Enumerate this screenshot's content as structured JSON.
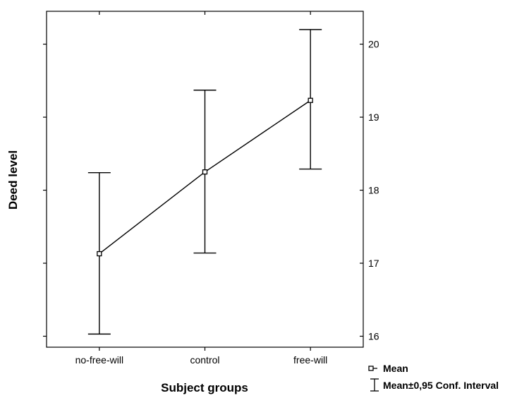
{
  "chart_data": {
    "type": "line",
    "title": "",
    "xlabel": "Subject groups",
    "ylabel": "Deed level",
    "categories": [
      "no-free-will",
      "control",
      "free-will"
    ],
    "series": [
      {
        "name": "Mean",
        "values": [
          17.13,
          18.25,
          19.23
        ],
        "ci_lower": [
          16.03,
          17.14,
          18.29
        ],
        "ci_upper": [
          18.24,
          19.37,
          20.2
        ]
      }
    ],
    "error_bar_label": "Mean±0,95 Conf. Interval",
    "ylim": [
      15.85,
      20.45
    ],
    "yticks": [
      16,
      17,
      18,
      19,
      20
    ],
    "grid": false,
    "legend_position": "bottom-right",
    "colors": {
      "line": "#000000",
      "background": "#ffffff"
    }
  }
}
